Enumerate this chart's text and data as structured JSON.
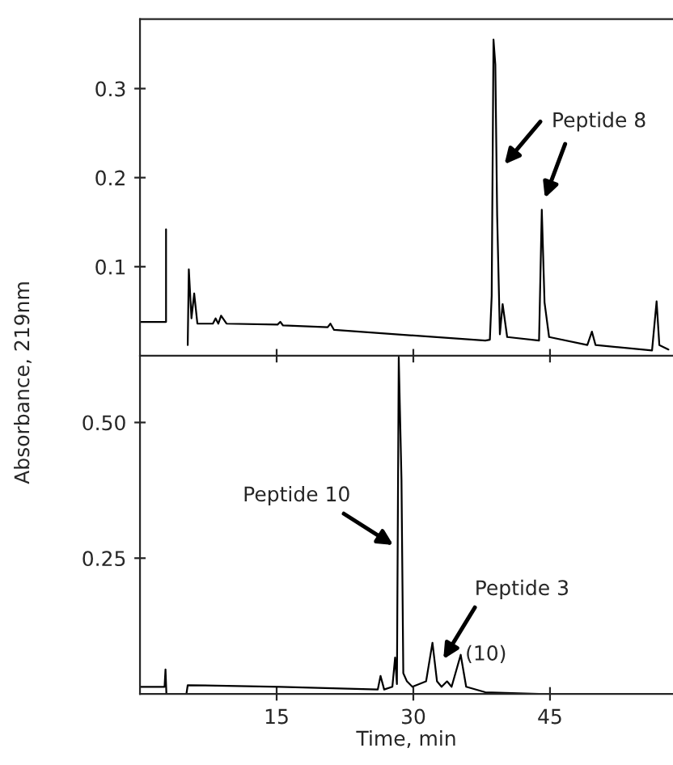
{
  "chart_data": [
    {
      "type": "line",
      "xlim": [
        0,
        58.5
      ],
      "ylim": [
        0,
        0.378
      ],
      "xticks": [
        {
          "value": 15,
          "label": null
        },
        {
          "value": 30,
          "label": null
        },
        {
          "value": 45,
          "label": null
        }
      ],
      "yticks": [
        0.1,
        0.2,
        0.3
      ],
      "tick_labels": "y",
      "grid": false,
      "legend": false,
      "series": [
        {
          "color": "#000000",
          "x": [
            0,
            2.86,
            2.86,
            2.9,
            5.2,
            5.24,
            5.36,
            5.65,
            5.95,
            6.3,
            8.0,
            8.3,
            8.6,
            8.9,
            9.5,
            15.1,
            15.4,
            15.7,
            20.6,
            20.9,
            21.3,
            29.6,
            37.9,
            38.4,
            38.6,
            38.8,
            39.0,
            39.2,
            39.5,
            39.8,
            40.3,
            43.8,
            44.1,
            44.4,
            44.9,
            49.1,
            49.6,
            50.0,
            56.2,
            56.7,
            57.0,
            58.0
          ],
          "values": [
            0.038,
            0.038,
            0.142,
            null,
            null,
            0.012,
            0.097,
            0.042,
            0.07,
            0.036,
            0.036,
            0.042,
            0.036,
            0.045,
            0.036,
            0.035,
            0.038,
            0.034,
            0.032,
            0.036,
            0.029,
            0.023,
            0.017,
            0.018,
            0.067,
            0.355,
            0.327,
            0.158,
            0.024,
            0.058,
            0.021,
            0.017,
            0.164,
            0.06,
            0.021,
            0.012,
            0.027,
            0.012,
            0.006,
            0.061,
            0.012,
            0.007
          ]
        }
      ],
      "annotations": [
        {
          "text": "Peptide 8",
          "x": 40.0,
          "y": 0.215
        }
      ]
    },
    {
      "type": "line",
      "xlim": [
        0,
        58.5
      ],
      "ylim": [
        0,
        0.623
      ],
      "xticks": [
        15,
        30,
        45
      ],
      "yticks": [
        0.25,
        {
          "value": 0.5,
          "label": "0.50"
        }
      ],
      "grid": false,
      "legend": false,
      "xlabel": "Time, min",
      "ylabel": "Absorbance, 219nm",
      "series": [
        {
          "color": "#000000",
          "x": [
            0,
            2.7,
            2.8,
            2.9,
            5.1,
            5.24,
            15.4,
            26.1,
            26.4,
            26.8,
            27.7,
            28.0,
            28.2,
            28.4,
            28.7,
            28.9,
            29.3,
            29.9,
            31.4,
            32.1,
            32.6,
            33.1,
            33.7,
            34.2,
            35.2,
            35.8,
            37.9,
            43.8,
            58.0
          ],
          "values": [
            0.013,
            0.013,
            0.045,
            0.0,
            0.0,
            0.016,
            0.013,
            0.008,
            0.033,
            0.008,
            0.013,
            0.067,
            0.018,
            0.62,
            0.395,
            0.038,
            0.023,
            0.013,
            0.023,
            0.094,
            0.023,
            0.013,
            0.023,
            0.013,
            0.072,
            0.013,
            0.003,
            0.0,
            0.0
          ]
        }
      ],
      "annotations": [
        {
          "text": "Peptide 10",
          "x": 27.8,
          "y": 0.274
        },
        {
          "text": "Peptide 3",
          "x": 33.3,
          "y": 0.064
        },
        {
          "text": "(10)",
          "x": 35.2,
          "y": 0.072
        }
      ]
    }
  ]
}
